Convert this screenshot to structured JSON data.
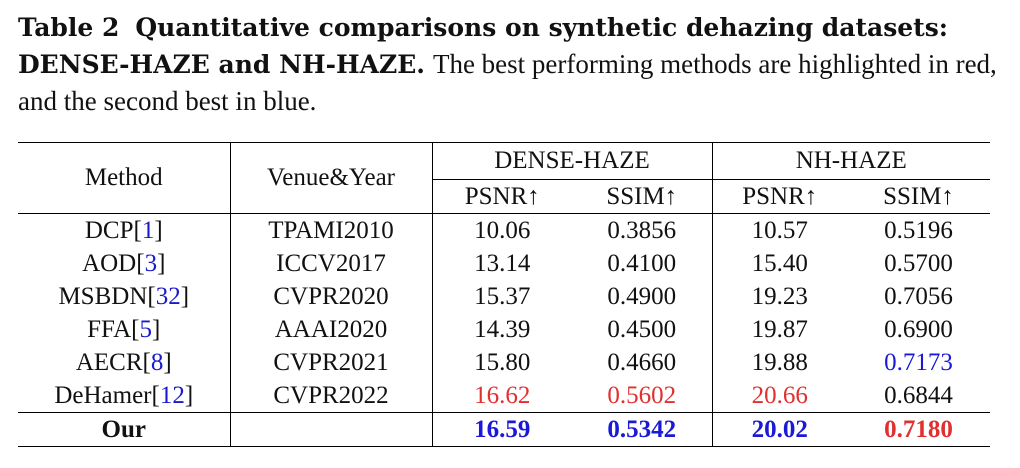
{
  "caption": {
    "label": "Table 2",
    "bold_title": "Quantitative comparisons on synthetic dehazing datasets: DENSE-HAZE and NH-HAZE.",
    "text": "The best performing methods are highlighted in red, and the second best in blue."
  },
  "header": {
    "method": "Method",
    "venue": "Venue&Year",
    "groups": [
      "DENSE-HAZE",
      "NH-HAZE"
    ],
    "metrics": [
      "PSNR↑",
      "SSIM↑",
      "PSNR↑",
      "SSIM↑"
    ]
  },
  "rows": [
    {
      "method": "DCP",
      "ref": "1",
      "venue": "TPAMI2010",
      "values": [
        "10.06",
        "0.3856",
        "10.57",
        "0.5196"
      ]
    },
    {
      "method": "AOD",
      "ref": "3",
      "venue": "ICCV2017",
      "values": [
        "13.14",
        "0.4100",
        "15.40",
        "0.5700"
      ]
    },
    {
      "method": "MSBDN",
      "ref": "32",
      "venue": "CVPR2020",
      "values": [
        "15.37",
        "0.4900",
        "19.23",
        "0.7056"
      ]
    },
    {
      "method": "FFA",
      "ref": "5",
      "venue": "AAAI2020",
      "values": [
        "14.39",
        "0.4500",
        "19.87",
        "0.6900"
      ]
    },
    {
      "method": "AECR",
      "ref": "8",
      "venue": "CVPR2021",
      "values": [
        "15.80",
        "0.4660",
        "19.88",
        "0.7173"
      ]
    },
    {
      "method": "DeHamer",
      "ref": "12",
      "venue": "CVPR2022",
      "values": [
        "16.62",
        "0.5602",
        "20.66",
        "0.6844"
      ]
    },
    {
      "method": "Our",
      "ref": "",
      "venue": "",
      "values": [
        "16.59",
        "0.5342",
        "20.02",
        "0.7180"
      ]
    }
  ],
  "highlights": {
    "best_color": "#e03030",
    "second_color": "#1a1ad6",
    "link_color": "#1a1acc"
  }
}
